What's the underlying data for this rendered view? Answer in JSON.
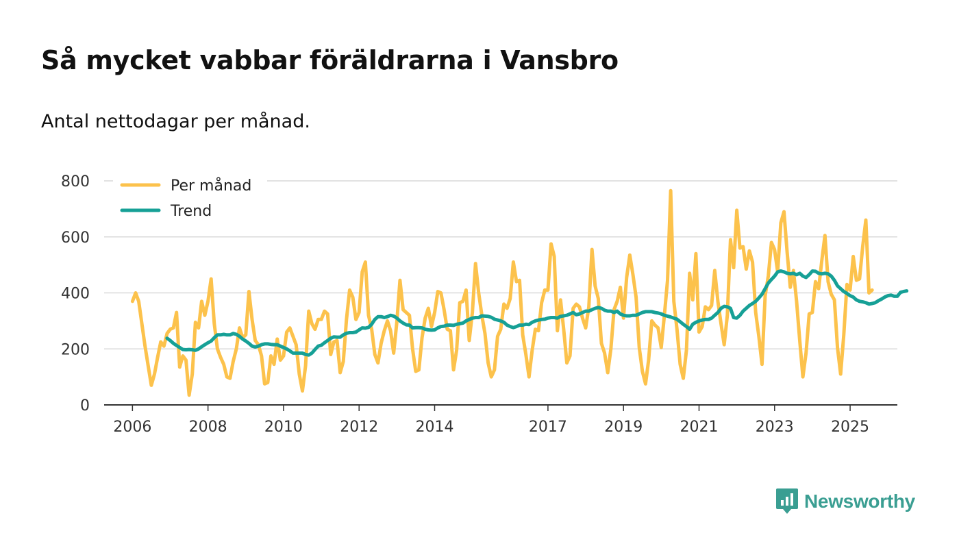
{
  "title": "Så mycket vabbar föräldrarna i Vansbro",
  "subtitle": "Antal nettodagar per månad.",
  "brand": {
    "name": "Newsworthy",
    "icon": "newsworthy-logo-icon",
    "color": "#3a9e92"
  },
  "chart_data": {
    "type": "line",
    "title": "Så mycket vabbar föräldrarna i Vansbro",
    "subtitle": "Antal nettodagar per månad.",
    "xlabel": "",
    "ylabel": "",
    "ylim": [
      0,
      800
    ],
    "xlim": [
      2005.25,
      2026.25
    ],
    "y_ticks": [
      0,
      200,
      400,
      600,
      800
    ],
    "x_ticks": [
      2006,
      2008,
      2010,
      2012,
      2014,
      2017,
      2019,
      2021,
      2023,
      2025
    ],
    "grid": true,
    "legend": "top-left",
    "series": [
      {
        "name": "Per månad",
        "color": "#fcc24c",
        "x_start": 2006.0,
        "x_step": 0.08333,
        "values": [
          370,
          400,
          370,
          290,
          210,
          140,
          70,
          110,
          170,
          225,
          210,
          255,
          270,
          275,
          330,
          135,
          175,
          160,
          35,
          110,
          295,
          275,
          370,
          320,
          370,
          450,
          290,
          200,
          170,
          145,
          100,
          95,
          155,
          200,
          275,
          240,
          250,
          405,
          305,
          230,
          215,
          175,
          75,
          80,
          175,
          145,
          235,
          160,
          175,
          260,
          275,
          245,
          215,
          110,
          50,
          140,
          335,
          290,
          270,
          305,
          305,
          335,
          325,
          180,
          225,
          230,
          115,
          155,
          305,
          410,
          385,
          305,
          330,
          475,
          510,
          320,
          270,
          180,
          150,
          220,
          265,
          300,
          265,
          185,
          295,
          445,
          340,
          330,
          320,
          200,
          120,
          125,
          240,
          310,
          345,
          280,
          330,
          405,
          400,
          340,
          270,
          265,
          125,
          195,
          365,
          370,
          410,
          230,
          330,
          505,
          400,
          320,
          255,
          150,
          100,
          125,
          245,
          270,
          360,
          345,
          380,
          510,
          440,
          445,
          250,
          180,
          100,
          195,
          270,
          265,
          365,
          410,
          410,
          575,
          530,
          265,
          375,
          270,
          150,
          175,
          345,
          360,
          350,
          310,
          275,
          350,
          555,
          425,
          380,
          220,
          185,
          115,
          200,
          340,
          370,
          420,
          310,
          455,
          535,
          465,
          385,
          205,
          120,
          75,
          160,
          300,
          285,
          275,
          205,
          320,
          445,
          765,
          370,
          270,
          145,
          95,
          195,
          470,
          375,
          540,
          260,
          280,
          350,
          340,
          355,
          480,
          370,
          290,
          215,
          320,
          590,
          490,
          695,
          560,
          565,
          485,
          550,
          510,
          330,
          245,
          145,
          390,
          460,
          580,
          555,
          475,
          650,
          690,
          545,
          420,
          480,
          370,
          230,
          100,
          185,
          325,
          330,
          440,
          415,
          515,
          605,
          440,
          395,
          375,
          205,
          110,
          250,
          430,
          410,
          530,
          445,
          450,
          565,
          660,
          400,
          410
        ]
      },
      {
        "name": "Trend",
        "color": "#16a096",
        "x_start": 2006.9167,
        "x_step": 0.08333,
        "values": [
          238,
          230,
          220,
          212,
          205,
          198,
          197,
          198,
          197,
          195,
          200,
          208,
          215,
          222,
          228,
          240,
          250,
          250,
          252,
          250,
          250,
          255,
          252,
          245,
          235,
          228,
          220,
          210,
          207,
          210,
          215,
          218,
          218,
          216,
          215,
          215,
          210,
          205,
          200,
          193,
          185,
          185,
          185,
          185,
          180,
          178,
          185,
          198,
          210,
          213,
          222,
          230,
          238,
          243,
          242,
          242,
          250,
          256,
          258,
          258,
          260,
          268,
          275,
          274,
          277,
          288,
          305,
          315,
          315,
          312,
          315,
          320,
          317,
          310,
          300,
          292,
          286,
          285,
          275,
          276,
          276,
          275,
          270,
          268,
          267,
          268,
          275,
          280,
          281,
          285,
          285,
          284,
          288,
          290,
          292,
          300,
          305,
          310,
          312,
          312,
          318,
          317,
          316,
          313,
          306,
          303,
          300,
          295,
          285,
          280,
          276,
          280,
          285,
          285,
          288,
          287,
          295,
          300,
          303,
          305,
          306,
          310,
          312,
          312,
          310,
          316,
          318,
          320,
          325,
          330,
          322,
          325,
          330,
          335,
          335,
          340,
          345,
          348,
          345,
          338,
          335,
          335,
          330,
          335,
          325,
          320,
          318,
          318,
          320,
          320,
          325,
          330,
          333,
          333,
          333,
          330,
          328,
          325,
          320,
          317,
          314,
          310,
          306,
          297,
          288,
          280,
          270,
          288,
          295,
          300,
          303,
          305,
          305,
          310,
          320,
          330,
          345,
          352,
          350,
          345,
          312,
          310,
          320,
          335,
          345,
          355,
          362,
          370,
          382,
          395,
          415,
          435,
          448,
          460,
          475,
          478,
          475,
          470,
          468,
          470,
          465,
          470,
          460,
          455,
          465,
          478,
          477,
          470,
          468,
          470,
          468,
          460,
          445,
          425,
          415,
          405,
          398,
          390,
          385,
          375,
          370,
          368,
          365,
          360,
          362,
          365,
          372,
          378,
          385,
          390,
          392,
          388,
          388,
          402,
          405,
          407
        ]
      }
    ]
  }
}
